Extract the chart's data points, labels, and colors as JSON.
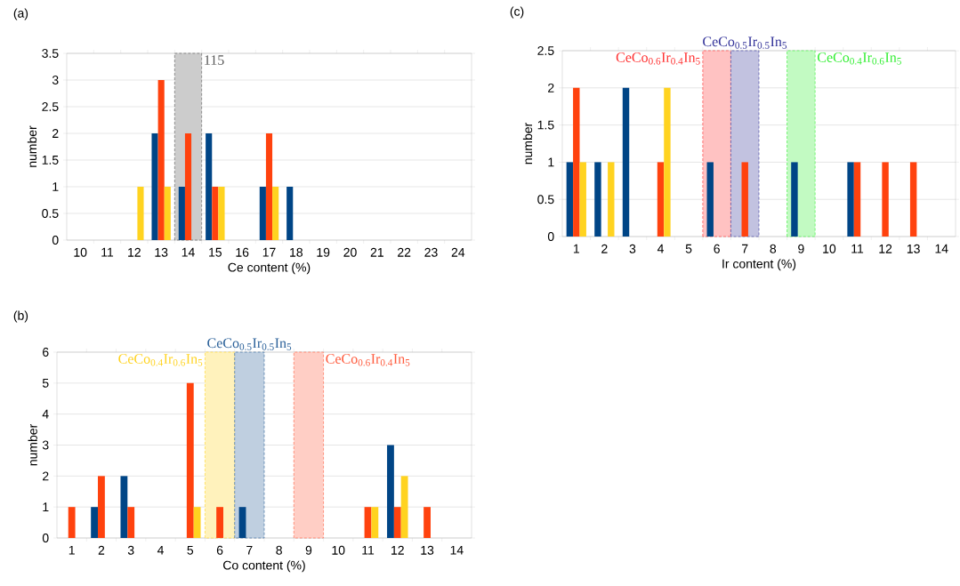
{
  "chart_data": [
    {
      "type": "bar",
      "title": "(a)",
      "xlabel": "Ce content (%)",
      "ylabel": "number",
      "grid": "y",
      "x": [
        12,
        13,
        14,
        15,
        16,
        17,
        18
      ],
      "xlim": [
        9.5,
        24.5
      ],
      "xticks": [
        10,
        11,
        12,
        13,
        14,
        15,
        16,
        17,
        18,
        19,
        20,
        21,
        22,
        23,
        24
      ],
      "ylim": [
        0,
        3.5
      ],
      "yticks": [
        0,
        0.5,
        1,
        1.5,
        2,
        2.5,
        3,
        3.5
      ],
      "series": [
        {
          "color": "#004586",
          "values": [
            null,
            2,
            1,
            2,
            null,
            1,
            1
          ]
        },
        {
          "color": "#ff420e",
          "values": [
            null,
            3,
            2,
            1,
            null,
            2,
            null
          ]
        },
        {
          "color": "#ffd320",
          "values": [
            1,
            1,
            null,
            1,
            null,
            1,
            null
          ]
        }
      ],
      "bands": [
        {
          "axis": "x",
          "from": 13.5,
          "to": 14.5,
          "label": "115",
          "color": "#555555"
        }
      ]
    },
    {
      "type": "bar",
      "title": "(b)",
      "xlabel": "Co content (%)",
      "ylabel": "number",
      "grid": "y",
      "x": [
        1,
        2,
        3,
        4,
        5,
        6,
        7,
        8,
        9,
        10,
        11,
        12,
        13
      ],
      "xlim": [
        0.5,
        14.5
      ],
      "xticks": [
        1,
        2,
        3,
        4,
        5,
        6,
        7,
        8,
        9,
        10,
        11,
        12,
        13,
        14
      ],
      "ylim": [
        0,
        6
      ],
      "yticks": [
        0,
        1,
        2,
        3,
        4,
        5,
        6
      ],
      "series": [
        {
          "color": "#004586",
          "values": [
            null,
            1,
            2,
            null,
            null,
            null,
            1,
            null,
            null,
            null,
            null,
            3,
            null
          ]
        },
        {
          "color": "#ff420e",
          "values": [
            1,
            2,
            1,
            null,
            5,
            1,
            null,
            null,
            null,
            null,
            1,
            1,
            1
          ]
        },
        {
          "color": "#ffd320",
          "values": [
            null,
            null,
            null,
            null,
            1,
            null,
            null,
            null,
            null,
            null,
            1,
            2,
            null
          ]
        }
      ],
      "bands": [
        {
          "axis": "x",
          "from": 5.5,
          "to": 6.5,
          "label": "CeCo$_{0.4}$Ir$_{0.6}$In$_{5}$",
          "color": "#ffd320"
        },
        {
          "axis": "x",
          "from": 6.5,
          "to": 7.5,
          "label": "CeCo$_{0.5}$Ir$_{0.5}$In$_{5}$",
          "color": "#2a6099"
        },
        {
          "axis": "x",
          "from": 8.5,
          "to": 9.5,
          "label": "CeCo$_{0.6}$Ir$_{0.4}$In$_{5}$",
          "color": "#ff5a3c"
        }
      ]
    },
    {
      "type": "bar",
      "title": "(c)",
      "xlabel": "Ir content (%)",
      "ylabel": "number",
      "grid": "y",
      "x": [
        1,
        2,
        3,
        4,
        5,
        6,
        7,
        8,
        9,
        10,
        11,
        12,
        13
      ],
      "xlim": [
        0.5,
        14.5
      ],
      "xticks": [
        1,
        2,
        3,
        4,
        5,
        6,
        7,
        8,
        9,
        10,
        11,
        12,
        13,
        14
      ],
      "ylim": [
        0,
        2.5
      ],
      "yticks": [
        0,
        0.5,
        1,
        1.5,
        2,
        2.5
      ],
      "series": [
        {
          "color": "#004586",
          "values": [
            1,
            1,
            2,
            null,
            null,
            1,
            null,
            null,
            1,
            null,
            1,
            null,
            null
          ]
        },
        {
          "color": "#ff420e",
          "values": [
            2,
            null,
            null,
            1,
            null,
            null,
            1,
            null,
            null,
            null,
            1,
            1,
            1
          ]
        },
        {
          "color": "#ffd320",
          "values": [
            1,
            1,
            null,
            2,
            null,
            null,
            null,
            null,
            null,
            null,
            null,
            null,
            null
          ]
        }
      ],
      "bands": [
        {
          "axis": "x",
          "from": 5.5,
          "to": 6.5,
          "label": "CeCo$_{0.6}$Ir$_{0.4}$In$_{5}$",
          "color": "#ff3333"
        },
        {
          "axis": "x",
          "from": 6.5,
          "to": 7.5,
          "label": "CeCo$_{0.5}$Ir$_{0.5}$In$_{5}$",
          "color": "#333399"
        },
        {
          "axis": "x",
          "from": 8.5,
          "to": 9.5,
          "label": "CeCo$_{0.4}$Ir$_{0.6}$In$_{5}$",
          "color": "#33ee33"
        }
      ]
    }
  ]
}
